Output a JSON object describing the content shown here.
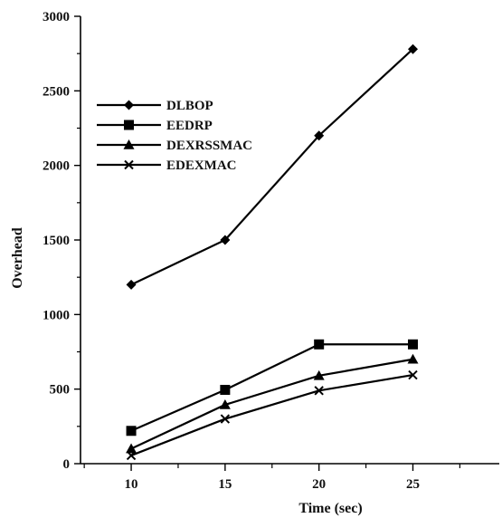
{
  "chart_data": {
    "type": "line",
    "title": "",
    "xlabel": "Time (sec)",
    "ylabel": "Overhead",
    "x": [
      10,
      15,
      20,
      25
    ],
    "xlim": [
      7.3,
      29.6
    ],
    "ylim": [
      0,
      3000
    ],
    "xticks": [
      10,
      15,
      20,
      25
    ],
    "yticks": [
      0,
      500,
      1000,
      1500,
      2000,
      2500,
      3000
    ],
    "grid": false,
    "legend_position": "upper-left",
    "series": [
      {
        "name": "DLBOP",
        "marker": "diamond",
        "color": "#000000",
        "values": [
          1200,
          1500,
          2200,
          2780
        ]
      },
      {
        "name": "EEDRP",
        "marker": "square",
        "color": "#000000",
        "values": [
          220,
          495,
          800,
          800
        ]
      },
      {
        "name": "DEXRSSMAC",
        "marker": "triangle",
        "color": "#000000",
        "values": [
          100,
          395,
          590,
          700
        ]
      },
      {
        "name": "EDEXMAC",
        "marker": "x",
        "color": "#000000",
        "values": [
          55,
          300,
          490,
          595
        ]
      }
    ]
  }
}
